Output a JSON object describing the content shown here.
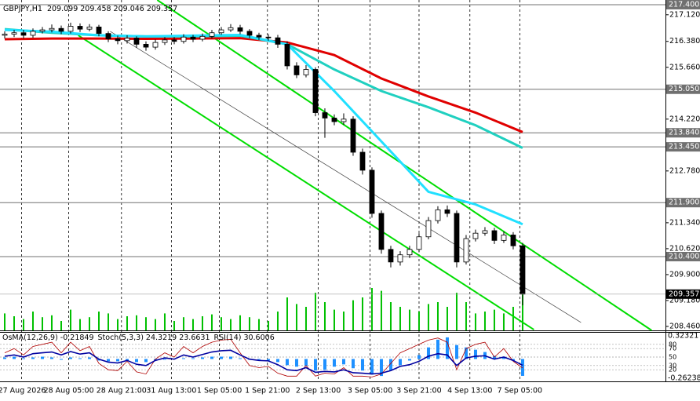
{
  "chart_data": {
    "type": "candlestick",
    "title": "GBPJPY,H1",
    "ohlc_info": [
      209.099,
      209.458,
      209.046,
      209.357
    ],
    "xlim": [
      -0.5,
      70.17
    ],
    "xticks": [
      {
        "value": 1.8,
        "label": "27 Aug 2026"
      },
      {
        "value": 6.8,
        "label": "28 Aug 05:00"
      },
      {
        "value": 12.4,
        "label": "28 Aug 21:00"
      },
      {
        "value": 17.7,
        "label": "31 Aug 13:00"
      },
      {
        "value": 22.8,
        "label": "1 Sep 05:00"
      },
      {
        "value": 27.9,
        "label": "1 Sep 21:00"
      },
      {
        "value": 33.3,
        "label": "2 Sep 13:00"
      },
      {
        "value": 38.8,
        "label": "3 Sep 05:00"
      },
      {
        "value": 44,
        "label": "3 Sep 21:00"
      },
      {
        "value": 49.4,
        "label": "4 Sep 13:00"
      },
      {
        "value": 54.7,
        "label": "7 Sep 05:00"
      }
    ],
    "ylim": [
      208.35,
      217.53
    ],
    "yticks": [
      {
        "value": 217.12,
        "label": "217.120"
      },
      {
        "value": 216.38,
        "label": "216.380"
      },
      {
        "value": 215.66,
        "label": "215.660"
      },
      {
        "value": 214.22,
        "label": "214.220"
      },
      {
        "value": 212.78,
        "label": "212.780"
      },
      {
        "value": 211.34,
        "label": "211.340"
      },
      {
        "value": 210.62,
        "label": "210.620"
      },
      {
        "value": 209.9,
        "label": "209.900"
      },
      {
        "value": 209.18,
        "label": "209.180"
      },
      {
        "value": 208.46,
        "label": "208.460"
      }
    ],
    "levels": [
      {
        "value": 217.4,
        "label": "217.400"
      },
      {
        "value": 215.05,
        "label": "215.050"
      },
      {
        "value": 213.84,
        "label": "213.840"
      },
      {
        "value": 213.45,
        "label": "213.450"
      },
      {
        "value": 211.9,
        "label": "211.900"
      },
      {
        "value": 210.4,
        "label": "210.400"
      }
    ],
    "current_price": {
      "value": 209.357,
      "label": "209.357"
    },
    "grid": true,
    "open": [
      216.55,
      216.58,
      216.62,
      216.55,
      216.66,
      216.7,
      216.74,
      216.66,
      216.8,
      216.72,
      216.78,
      216.6,
      216.45,
      216.4,
      216.47,
      216.3,
      216.22,
      216.35,
      216.42,
      216.38,
      216.5,
      216.44,
      216.52,
      216.62,
      216.7,
      216.76,
      216.66,
      216.55,
      216.5,
      216.48,
      216.3,
      215.7,
      215.45,
      215.6,
      214.4,
      214.25,
      214.15,
      214.22,
      213.3,
      212.8,
      211.6,
      210.6,
      210.25,
      210.45,
      210.6,
      210.95,
      211.4,
      211.7,
      211.6,
      210.25,
      210.9,
      211.05,
      211.12,
      210.85,
      211.0,
      210.7
    ],
    "high": [
      216.66,
      216.7,
      216.7,
      216.74,
      216.78,
      216.85,
      216.82,
      216.9,
      216.88,
      216.86,
      216.84,
      216.66,
      216.54,
      216.55,
      216.52,
      216.38,
      216.43,
      216.5,
      216.5,
      216.58,
      216.56,
      216.6,
      216.7,
      216.78,
      216.86,
      216.84,
      216.72,
      216.62,
      216.58,
      216.56,
      216.38,
      215.8,
      215.72,
      215.66,
      214.52,
      214.35,
      214.38,
      214.3,
      213.4,
      212.88,
      211.68,
      210.7,
      210.55,
      210.7,
      211.05,
      211.5,
      211.8,
      211.82,
      211.68,
      211.0,
      211.15,
      211.22,
      211.2,
      211.1,
      211.08,
      210.78
    ],
    "low": [
      216.46,
      216.5,
      216.46,
      216.48,
      216.6,
      216.63,
      216.58,
      216.6,
      216.64,
      216.66,
      216.52,
      216.36,
      216.3,
      216.32,
      216.2,
      216.12,
      216.15,
      216.28,
      216.3,
      216.32,
      216.36,
      216.38,
      216.46,
      216.56,
      216.64,
      216.58,
      216.47,
      216.42,
      216.4,
      216.2,
      215.6,
      215.36,
      215.38,
      214.3,
      213.7,
      214.05,
      214.06,
      213.2,
      212.68,
      211.48,
      210.48,
      210.1,
      210.15,
      210.36,
      210.52,
      210.88,
      211.32,
      211.5,
      210.1,
      210.18,
      210.82,
      210.98,
      210.75,
      210.78,
      210.6,
      209.046
    ],
    "close": [
      216.58,
      216.62,
      216.55,
      216.66,
      216.7,
      216.74,
      216.66,
      216.8,
      216.72,
      216.78,
      216.6,
      216.45,
      216.4,
      216.47,
      216.3,
      216.22,
      216.35,
      216.42,
      216.38,
      216.5,
      216.44,
      216.52,
      216.62,
      216.7,
      216.76,
      216.66,
      216.55,
      216.5,
      216.48,
      216.3,
      215.7,
      215.45,
      215.6,
      214.4,
      214.25,
      214.15,
      214.22,
      213.3,
      212.8,
      211.6,
      210.6,
      210.25,
      210.45,
      210.6,
      210.95,
      211.4,
      211.7,
      211.6,
      210.25,
      210.9,
      211.05,
      211.12,
      210.85,
      211.0,
      210.7,
      209.357
    ],
    "volume": [
      18,
      15,
      12,
      20,
      14,
      16,
      10,
      22,
      12,
      14,
      20,
      18,
      12,
      15,
      16,
      14,
      12,
      18,
      10,
      14,
      12,
      15,
      17,
      14,
      12,
      16,
      14,
      12,
      10,
      20,
      35,
      28,
      25,
      40,
      30,
      22,
      20,
      32,
      35,
      45,
      42,
      30,
      25,
      22,
      20,
      28,
      30,
      25,
      40,
      30,
      18,
      20,
      22,
      18,
      25,
      45
    ],
    "volume_color": "#00c000",
    "moving_averages": [
      {
        "color": "#e00000",
        "x": [
          0,
          5,
          10,
          15,
          20,
          25,
          30,
          35,
          40,
          45,
          50,
          55
        ],
        "values": [
          216.44,
          216.46,
          216.46,
          216.45,
          216.46,
          216.47,
          216.35,
          216.0,
          215.35,
          214.85,
          214.4,
          213.86
        ]
      },
      {
        "color": "#20d0c0",
        "x": [
          0,
          5,
          10,
          15,
          20,
          25,
          30,
          35,
          40,
          45,
          50,
          55
        ],
        "values": [
          216.72,
          216.62,
          216.55,
          216.52,
          216.52,
          216.54,
          216.3,
          215.6,
          215.0,
          214.55,
          214.05,
          213.42
        ]
      },
      {
        "color": "#20e0ff",
        "x": [
          0,
          5,
          10,
          15,
          20,
          25,
          30,
          35,
          40,
          45,
          50,
          55
        ],
        "values": [
          216.7,
          216.65,
          216.55,
          216.52,
          216.54,
          216.56,
          216.3,
          215.0,
          213.6,
          212.2,
          211.85,
          211.3
        ]
      }
    ],
    "trendlines": [
      {
        "color": "#00dd00",
        "x": [
          16.2,
          68.7
        ],
        "y": [
          217.53,
          208.35
        ]
      },
      {
        "color": "#00dd00",
        "x": [
          7.8,
          56.2
        ],
        "y": [
          216.55,
          208.37
        ]
      },
      {
        "color": "#404040",
        "x": [
          11.2,
          61.2
        ],
        "y": [
          216.66,
          208.57
        ]
      }
    ],
    "oscillator": {
      "ylim": [
        -0.29,
        0.34
      ],
      "yticks": [
        0.32321,
        -0.26238
      ],
      "y2lim": [
        0,
        100
      ],
      "y2ticks": [
        80,
        70,
        50,
        30,
        20
      ],
      "series": [
        {
          "name": "OsMA(12,26,9)",
          "readout": [
            -0.21849
          ],
          "color": "#1e90ff",
          "values": [
            0.02,
            0.03,
            0.01,
            0.02,
            0.03,
            0.02,
            -0.01,
            0.02,
            0.01,
            0.02,
            -0.02,
            -0.03,
            -0.03,
            -0.02,
            -0.04,
            -0.04,
            -0.02,
            -0.01,
            0,
            0.01,
            0.01,
            0.02,
            0.03,
            0.03,
            0.03,
            0.01,
            -0.01,
            -0.01,
            -0.02,
            -0.04,
            -0.08,
            -0.1,
            -0.09,
            -0.15,
            -0.14,
            -0.1,
            -0.07,
            -0.12,
            -0.15,
            -0.2,
            -0.22,
            -0.15,
            -0.08,
            -0.02,
            0.05,
            0.15,
            0.25,
            0.28,
            0.18,
            0.15,
            0.12,
            0.09,
            0.04,
            0.03,
            -0.02,
            -0.21849
          ]
        },
        {
          "name": "Stoch(5,3,3)",
          "readout": [
            24.3219,
            23.6631
          ],
          "color": "#b00000",
          "axis": "y2",
          "values": [
            60,
            70,
            55,
            75,
            80,
            85,
            60,
            85,
            65,
            75,
            35,
            20,
            18,
            40,
            15,
            10,
            45,
            60,
            50,
            75,
            60,
            75,
            85,
            90,
            92,
            60,
            30,
            25,
            28,
            12,
            5,
            5,
            30,
            5,
            12,
            10,
            25,
            5,
            5,
            3,
            10,
            35,
            60,
            70,
            80,
            90,
            95,
            85,
            20,
            70,
            80,
            85,
            50,
            70,
            40,
            24.3219
          ]
        },
        {
          "name": "RSI(14)",
          "readout": [
            30.6006
          ],
          "color": "#0000a0",
          "axis": "y2",
          "values": [
            52,
            55,
            50,
            58,
            60,
            62,
            55,
            63,
            57,
            60,
            45,
            38,
            36,
            42,
            33,
            30,
            42,
            48,
            45,
            55,
            50,
            56,
            62,
            65,
            66,
            55,
            45,
            42,
            41,
            32,
            20,
            18,
            25,
            14,
            16,
            15,
            20,
            13,
            12,
            10,
            12,
            18,
            28,
            32,
            40,
            52,
            58,
            55,
            30,
            48,
            52,
            53,
            45,
            50,
            42,
            30.6006
          ]
        }
      ]
    }
  }
}
